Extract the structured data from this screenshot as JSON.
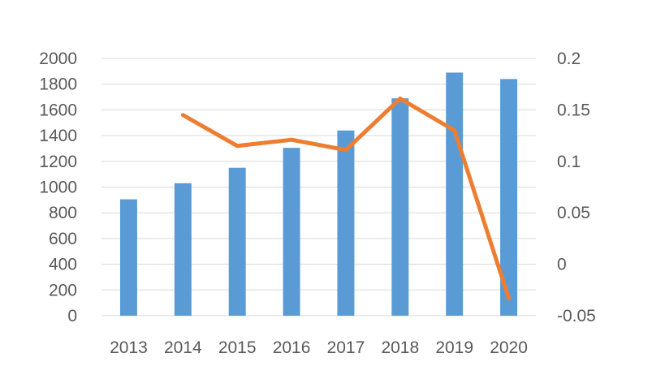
{
  "chart_data": {
    "type": "bar",
    "categories": [
      "2013",
      "2014",
      "2015",
      "2016",
      "2017",
      "2018",
      "2019",
      "2020"
    ],
    "series": [
      {
        "type": "bar",
        "axis": "left",
        "color": "#5b9bd5",
        "values": [
          905,
          1030,
          1150,
          1305,
          1440,
          1690,
          1890,
          1840
        ]
      },
      {
        "type": "line",
        "axis": "right",
        "color": "#ed7d31",
        "values": [
          null,
          0.145,
          0.115,
          0.121,
          0.111,
          0.161,
          0.13,
          -0.033
        ]
      }
    ],
    "ylim": [
      0,
      2000
    ],
    "y_ticks": [
      "0",
      "200",
      "400",
      "600",
      "800",
      "1000",
      "1200",
      "1400",
      "1600",
      "1800",
      "2000"
    ],
    "y2lim": [
      -0.05,
      0.2
    ],
    "y2_ticks": [
      "-0.05",
      "0",
      "0.05",
      "0.1",
      "0.15",
      "0.2"
    ],
    "grid": true,
    "legend": "none"
  }
}
